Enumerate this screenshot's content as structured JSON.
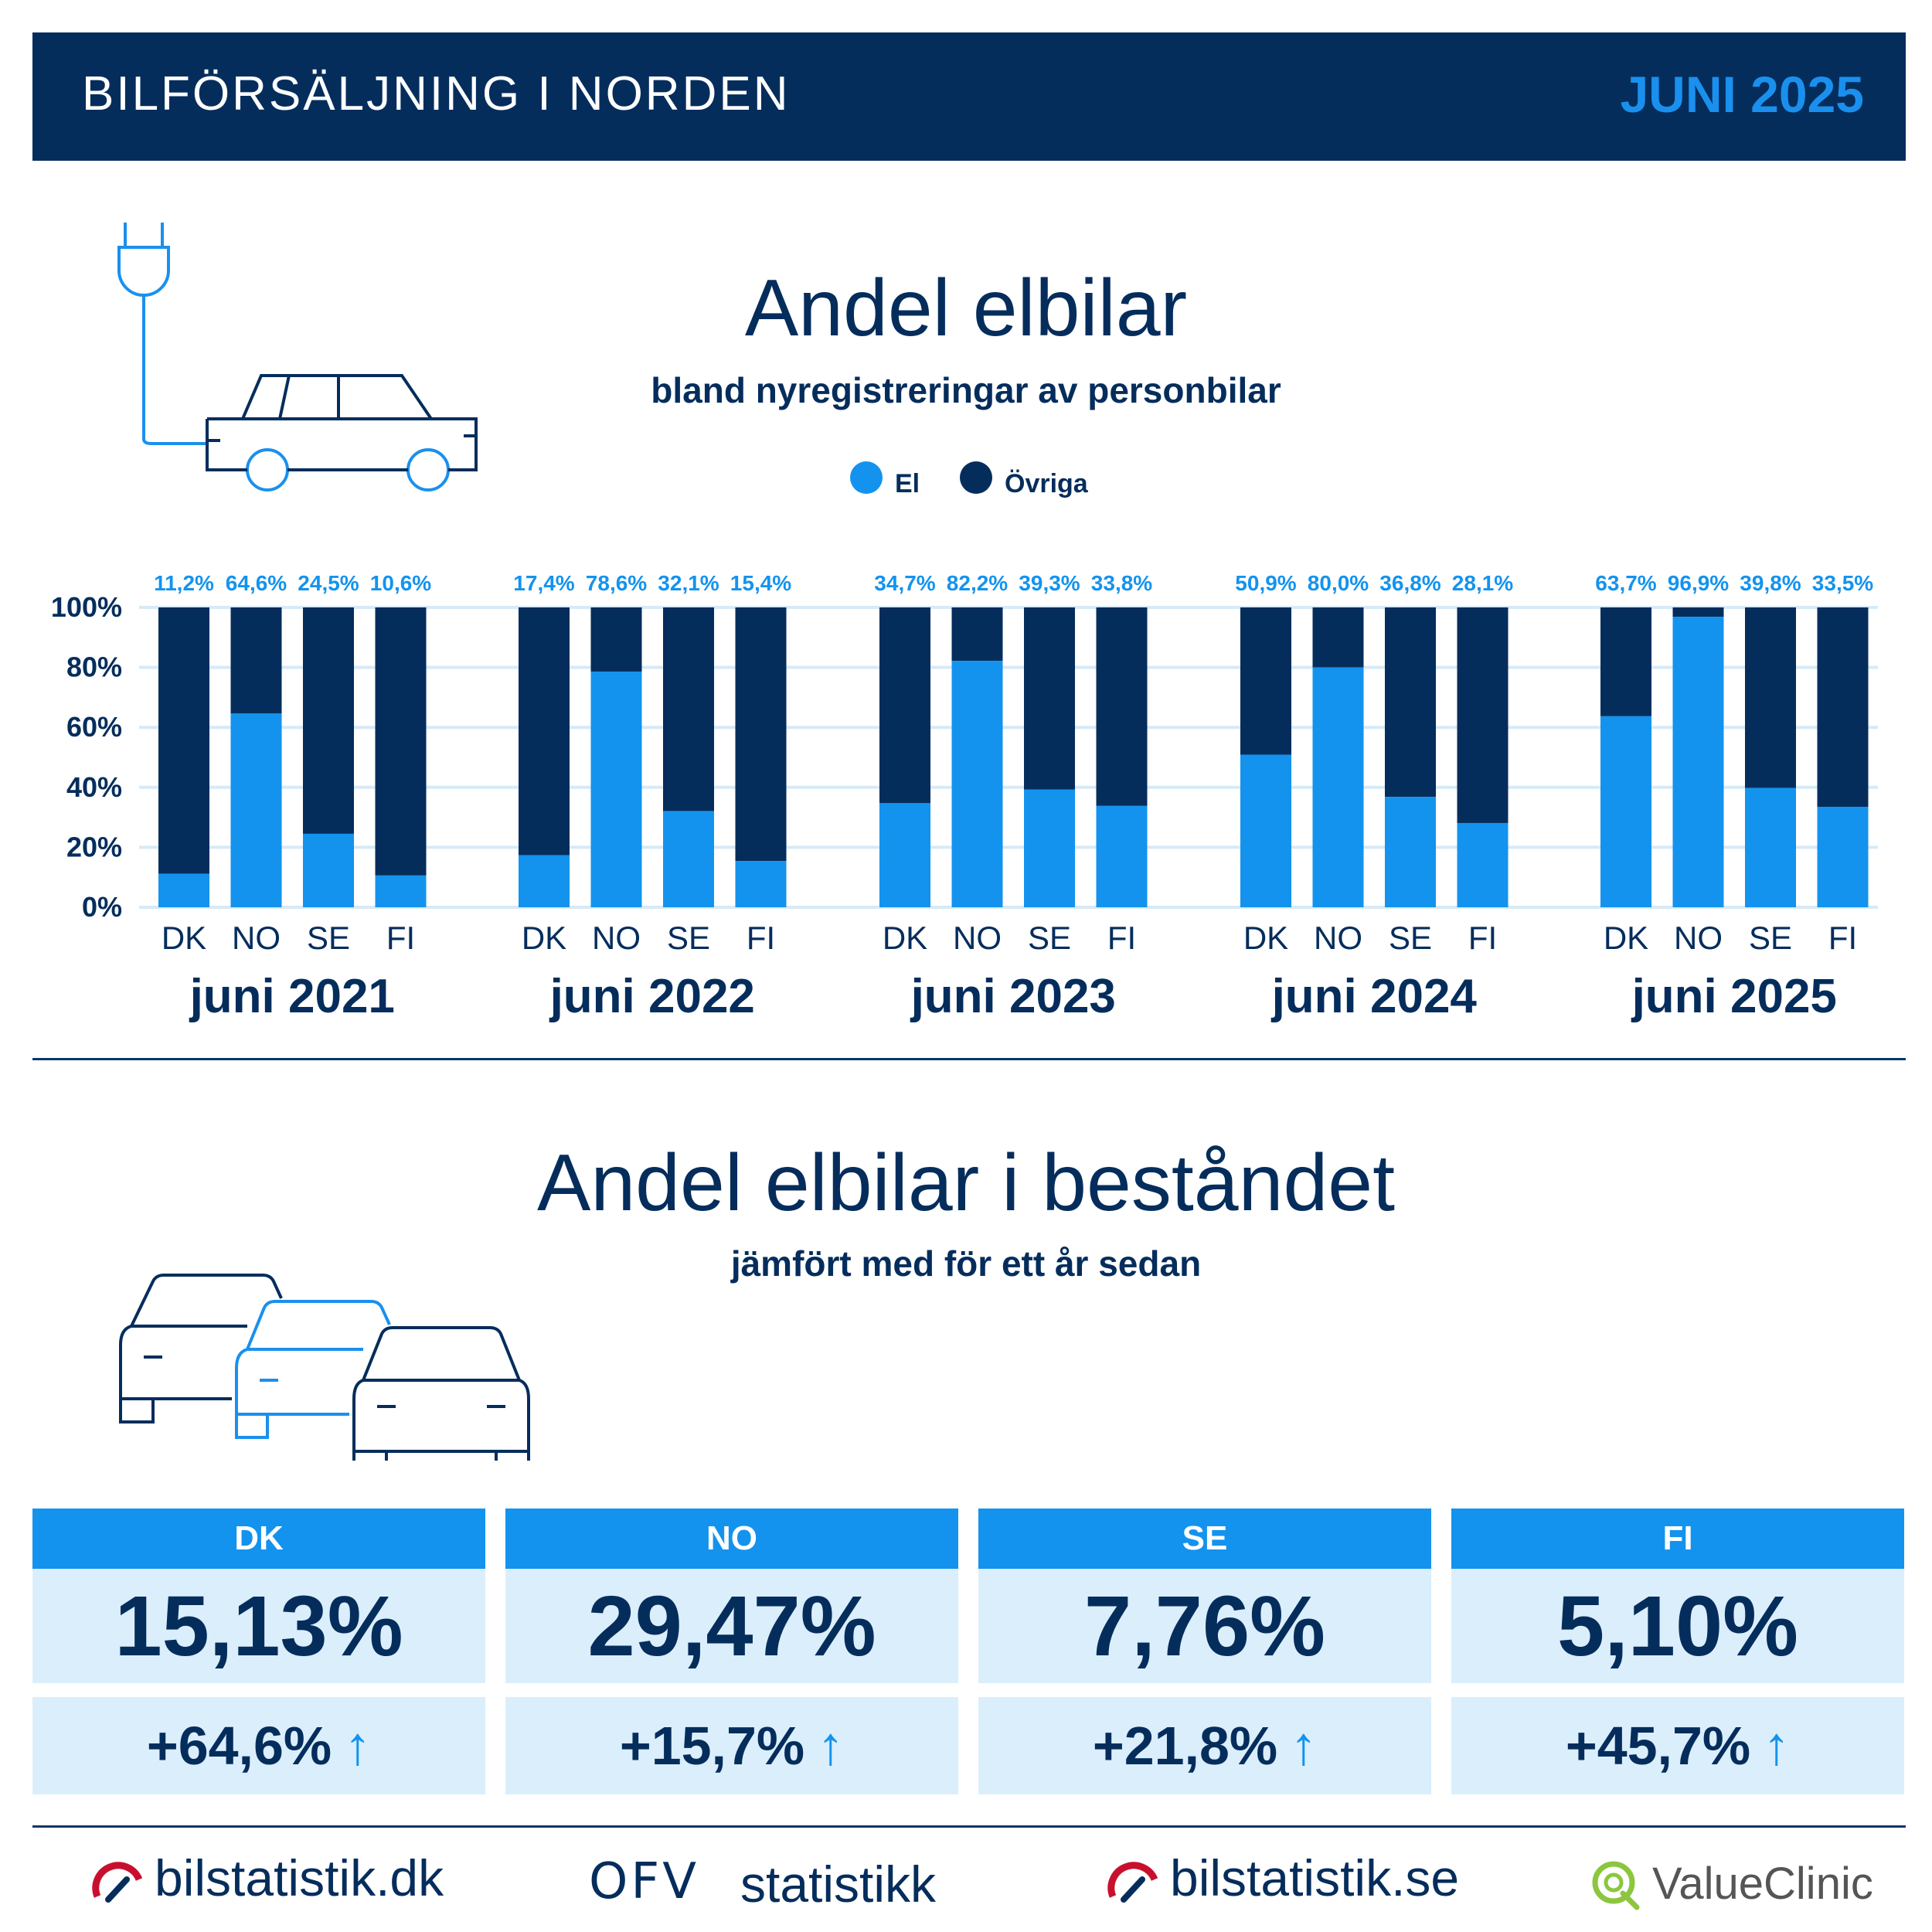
{
  "header": {
    "title": "BILFÖRSÄLJNING I NORDEN",
    "date": "JUNI 2025"
  },
  "section1": {
    "title": "Andel elbilar",
    "subtitle": "bland nyregistreringar av personbilar",
    "legend": [
      "El",
      "Övriga"
    ]
  },
  "section2": {
    "title": "Andel elbilar i beståndet",
    "subtitle": "jämfört med för ett år sedan"
  },
  "colors": {
    "el": "#1393ee",
    "ovriga": "#052d5c",
    "grid": "#d6eaf8"
  },
  "chart_data": {
    "type": "bar",
    "stacked": true,
    "ylim": [
      0,
      100
    ],
    "yticks": [
      "0%",
      "20%",
      "40%",
      "60%",
      "80%",
      "100%"
    ],
    "grid": true,
    "legend_position": "top",
    "groups": [
      {
        "label": "juni 2021",
        "categories": [
          "DK",
          "NO",
          "SE",
          "FI"
        ],
        "el": [
          11.2,
          64.6,
          24.5,
          10.6
        ],
        "labels": [
          "11,2%",
          "64,6%",
          "24,5%",
          "10,6%"
        ]
      },
      {
        "label": "juni 2022",
        "categories": [
          "DK",
          "NO",
          "SE",
          "FI"
        ],
        "el": [
          17.4,
          78.6,
          32.1,
          15.4
        ],
        "labels": [
          "17,4%",
          "78,6%",
          "32,1%",
          "15,4%"
        ]
      },
      {
        "label": "juni 2023",
        "categories": [
          "DK",
          "NO",
          "SE",
          "FI"
        ],
        "el": [
          34.7,
          82.2,
          39.3,
          33.8
        ],
        "labels": [
          "34,7%",
          "82,2%",
          "39,3%",
          "33,8%"
        ]
      },
      {
        "label": "juni 2024",
        "categories": [
          "DK",
          "NO",
          "SE",
          "FI"
        ],
        "el": [
          50.9,
          80.0,
          36.8,
          28.1
        ],
        "labels": [
          "50,9%",
          "80,0%",
          "36,8%",
          "28,1%"
        ]
      },
      {
        "label": "juni 2025",
        "categories": [
          "DK",
          "NO",
          "SE",
          "FI"
        ],
        "el": [
          63.7,
          96.9,
          39.8,
          33.5
        ],
        "labels": [
          "63,7%",
          "96,9%",
          "39,8%",
          "33,5%"
        ]
      }
    ],
    "series": [
      {
        "name": "El"
      },
      {
        "name": "Övriga"
      }
    ]
  },
  "stock": [
    {
      "country": "DK",
      "share": "15,13%",
      "change": "+64,6%"
    },
    {
      "country": "NO",
      "share": "29,47%",
      "change": "+15,7%"
    },
    {
      "country": "SE",
      "share": "7,76%",
      "change": "+21,8%"
    },
    {
      "country": "FI",
      "share": "5,10%",
      "change": "+45,7%"
    }
  ],
  "arrow_glyph": "↑",
  "footer": [
    "bilstatistik.dk",
    "OFV",
    "statistikk",
    "bilstatistik.se",
    "ValueClinic"
  ]
}
